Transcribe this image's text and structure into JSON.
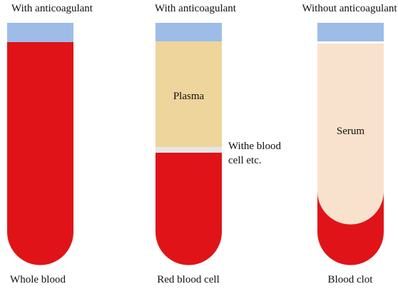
{
  "tubes": [
    {
      "top_label": "With anticoagulant",
      "bottom_label": "Whole blood",
      "layers": []
    },
    {
      "top_label": "With anticoagulant",
      "bottom_label": "Red blood cell",
      "layers": [
        {
          "label": "Plasma"
        }
      ],
      "side_label_line1": "Withe blood",
      "side_label_line2": "cell etc."
    },
    {
      "top_label": "Without anticoagulant",
      "bottom_label": "Blood clot",
      "layers": [
        {
          "label": "Serum"
        }
      ]
    }
  ],
  "colors": {
    "cap": "#9dbde8",
    "blood": "#e01418",
    "plasma": "#eed59b",
    "buffy": "#e6e6e6",
    "serum": "#f9e2cd"
  }
}
